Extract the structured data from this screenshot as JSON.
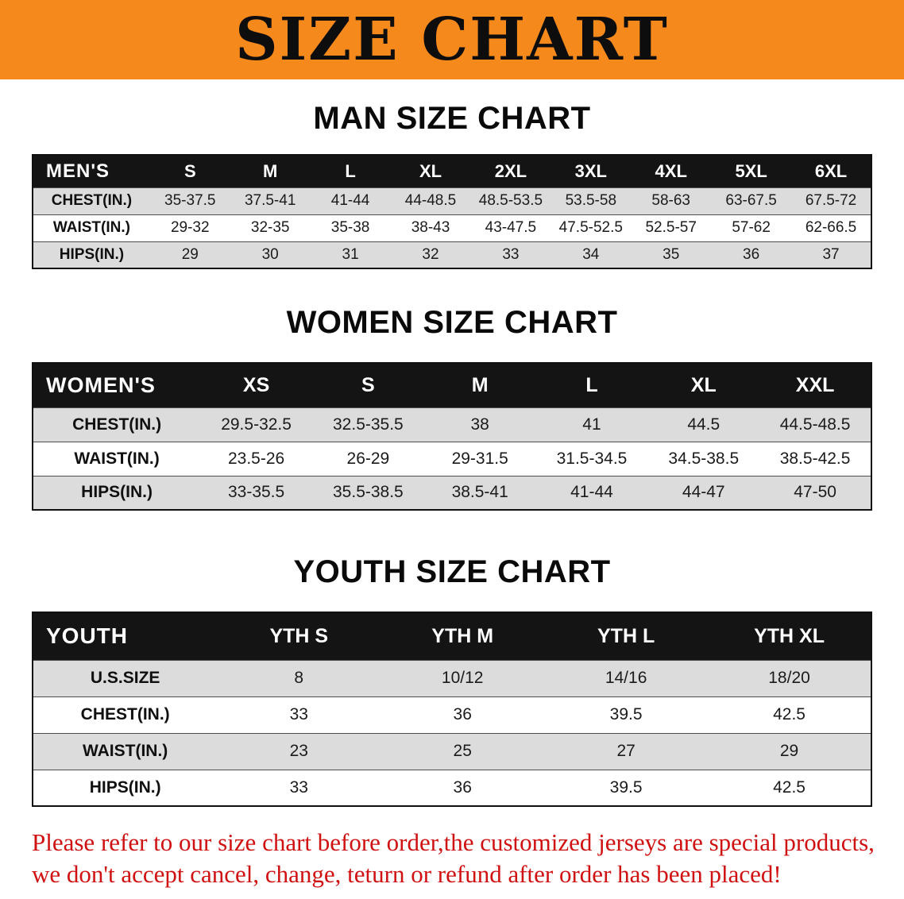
{
  "banner": {
    "title": "SIZE CHART"
  },
  "colors": {
    "banner_bg": "#f6891c",
    "table_header_bg": "#141414",
    "row_stripe": "#dcdcdc",
    "disclaimer_red": "#d01111"
  },
  "sections": {
    "men": {
      "heading": "MAN SIZE CHART"
    },
    "women": {
      "heading": "WOMEN SIZE CHART"
    },
    "youth": {
      "heading": "YOUTH SIZE CHART"
    }
  },
  "tables": {
    "men": {
      "first_col_width": "14%",
      "header": [
        "MEN'S",
        "S",
        "M",
        "L",
        "XL",
        "2XL",
        "3XL",
        "4XL",
        "5XL",
        "6XL"
      ],
      "rows": [
        [
          "CHEST(IN.)",
          "35-37.5",
          "37.5-41",
          "41-44",
          "44-48.5",
          "48.5-53.5",
          "53.5-58",
          "58-63",
          "63-67.5",
          "67.5-72"
        ],
        [
          "WAIST(IN.)",
          "29-32",
          "32-35",
          "35-38",
          "38-43",
          "43-47.5",
          "47.5-52.5",
          "52.5-57",
          "57-62",
          "62-66.5"
        ],
        [
          "HIPS(IN.)",
          "29",
          "30",
          "31",
          "32",
          "33",
          "34",
          "35",
          "36",
          "37"
        ]
      ]
    },
    "women": {
      "first_col_width": "20%",
      "header": [
        "WOMEN'S",
        "XS",
        "S",
        "M",
        "L",
        "XL",
        "XXL"
      ],
      "rows": [
        [
          "CHEST(IN.)",
          "29.5-32.5",
          "32.5-35.5",
          "38",
          "41",
          "44.5",
          "44.5-48.5"
        ],
        [
          "WAIST(IN.)",
          "23.5-26",
          "26-29",
          "29-31.5",
          "31.5-34.5",
          "34.5-38.5",
          "38.5-42.5"
        ],
        [
          "HIPS(IN.)",
          "33-35.5",
          "35.5-38.5",
          "38.5-41",
          "41-44",
          "44-47",
          "47-50"
        ]
      ]
    },
    "youth": {
      "first_col_width": "22%",
      "header": [
        "YOUTH",
        "YTH S",
        "YTH M",
        "YTH L",
        "YTH XL"
      ],
      "rows": [
        [
          "U.S.SIZE",
          "8",
          "10/12",
          "14/16",
          "18/20"
        ],
        [
          "CHEST(IN.)",
          "33",
          "36",
          "39.5",
          "42.5"
        ],
        [
          "WAIST(IN.)",
          "23",
          "25",
          "27",
          "29"
        ],
        [
          "HIPS(IN.)",
          "33",
          "36",
          "39.5",
          "42.5"
        ]
      ]
    }
  },
  "disclaimer": {
    "line1": "Please refer to our size chart before order,the customized jerseys are special products,",
    "line2": "we don't accept cancel, change, teturn or refund after order has been placed!"
  }
}
